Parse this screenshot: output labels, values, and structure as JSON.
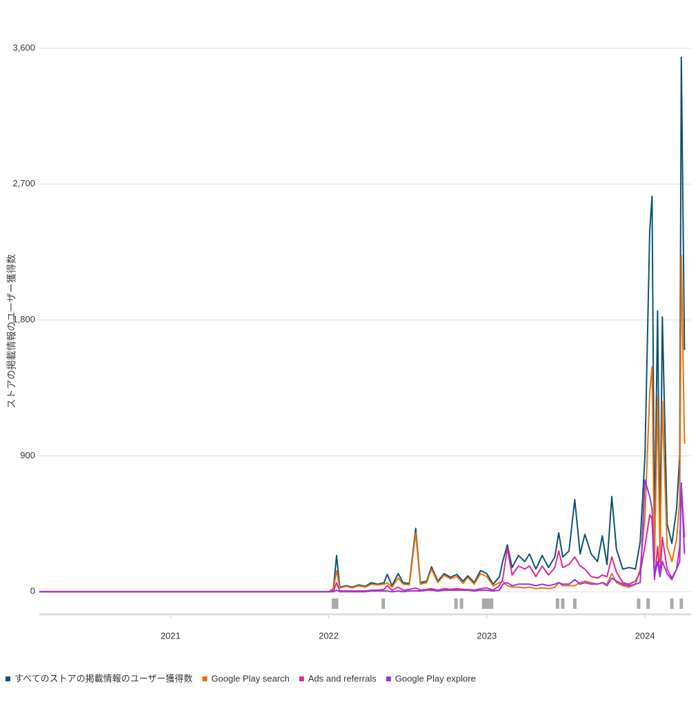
{
  "chart_data": {
    "type": "line",
    "y_label": "ストアの掲載情報のユーザー獲得数",
    "x": [
      2020.17,
      2022.0,
      2022.03,
      2022.05,
      2022.07,
      2022.11,
      2022.15,
      2022.19,
      2022.23,
      2022.27,
      2022.31,
      2022.35,
      2022.37,
      2022.4,
      2022.44,
      2022.47,
      2022.51,
      2022.55,
      2022.58,
      2022.62,
      2022.65,
      2022.69,
      2022.73,
      2022.77,
      2022.81,
      2022.85,
      2022.88,
      2022.92,
      2022.96,
      2023.0,
      2023.04,
      2023.08,
      2023.1,
      2023.13,
      2023.16,
      2023.2,
      2023.24,
      2023.27,
      2023.31,
      2023.35,
      2023.39,
      2023.43,
      2023.455,
      2023.48,
      2023.52,
      2023.556,
      2023.59,
      2023.62,
      2023.66,
      2023.7,
      2023.73,
      2023.76,
      2023.79,
      2023.82,
      2023.86,
      2023.9,
      2023.94,
      2023.97,
      2024.0,
      2024.03,
      2024.045,
      2024.06,
      2024.08,
      2024.095,
      2024.11,
      2024.14,
      2024.17,
      2024.2,
      2024.22,
      2024.23,
      2024.25
    ],
    "series": [
      {
        "name": "すべてのストアの掲載情報のユーザー獲得数",
        "color": "#0d5176",
        "values": [
          0,
          0,
          20,
          240,
          30,
          40,
          30,
          45,
          35,
          60,
          50,
          60,
          115,
          40,
          120,
          60,
          55,
          420,
          60,
          70,
          165,
          70,
          120,
          95,
          115,
          70,
          105,
          60,
          140,
          120,
          50,
          100,
          200,
          310,
          160,
          240,
          200,
          250,
          150,
          240,
          160,
          230,
          390,
          230,
          270,
          610,
          250,
          380,
          250,
          200,
          370,
          180,
          630,
          280,
          150,
          160,
          150,
          330,
          900,
          2390,
          2620,
          350,
          1860,
          300,
          1820,
          450,
          320,
          550,
          900,
          3540,
          1600
        ]
      },
      {
        "name": "Google Play search",
        "color": "#e8710a",
        "values": [
          0,
          0,
          15,
          140,
          25,
          35,
          25,
          40,
          30,
          50,
          45,
          50,
          60,
          30,
          90,
          50,
          45,
          390,
          50,
          60,
          150,
          60,
          110,
          85,
          100,
          55,
          95,
          50,
          120,
          100,
          40,
          60,
          70,
          40,
          30,
          30,
          25,
          30,
          20,
          25,
          20,
          30,
          60,
          40,
          40,
          40,
          60,
          70,
          60,
          50,
          60,
          50,
          120,
          60,
          40,
          30,
          50,
          150,
          500,
          1320,
          1490,
          200,
          1290,
          200,
          1260,
          300,
          200,
          350,
          600,
          2230,
          980
        ]
      },
      {
        "name": "Ads and referrals",
        "color": "#e52592",
        "values": [
          0,
          0,
          5,
          60,
          5,
          5,
          5,
          5,
          5,
          10,
          10,
          15,
          40,
          10,
          30,
          10,
          15,
          25,
          10,
          15,
          20,
          10,
          20,
          15,
          20,
          15,
          15,
          10,
          20,
          25,
          10,
          40,
          80,
          290,
          110,
          170,
          150,
          170,
          100,
          170,
          110,
          160,
          270,
          160,
          180,
          230,
          170,
          150,
          100,
          90,
          110,
          100,
          230,
          130,
          60,
          50,
          70,
          130,
          300,
          510,
          480,
          80,
          300,
          100,
          360,
          150,
          90,
          150,
          300,
          700,
          360
        ]
      },
      {
        "name": "Google Play explore",
        "color": "#9334e6",
        "values": [
          0,
          0,
          0,
          10,
          0,
          0,
          0,
          0,
          0,
          5,
          5,
          5,
          5,
          0,
          5,
          0,
          5,
          5,
          5,
          10,
          10,
          5,
          10,
          10,
          10,
          10,
          10,
          5,
          10,
          10,
          5,
          10,
          50,
          60,
          40,
          50,
          50,
          50,
          40,
          50,
          40,
          50,
          60,
          50,
          50,
          80,
          50,
          60,
          50,
          50,
          60,
          40,
          90,
          70,
          50,
          40,
          50,
          60,
          740,
          630,
          550,
          100,
          200,
          100,
          200,
          120,
          80,
          150,
          200,
          720,
          250
        ]
      }
    ],
    "event_x": [
      2022.03,
      2022.04,
      2022.05,
      2022.345,
      2022.805,
      2022.84,
      2022.98,
      2022.99,
      2023.0,
      2023.01,
      2023.02,
      2023.03,
      2023.447,
      2023.48,
      2023.556,
      2023.96,
      2024.02,
      2024.17,
      2024.23
    ],
    "xlim": [
      2020.17,
      2024.27
    ],
    "xticks": [
      2021,
      2022,
      2023,
      2024
    ],
    "ylim": [
      -150,
      3600
    ],
    "yticks": [
      0,
      {
        "value": 900,
        "label": "900"
      },
      {
        "value": 1800,
        "label": "1,800"
      },
      {
        "value": 2700,
        "label": "2,700"
      },
      {
        "value": 3600,
        "label": "3,600"
      }
    ],
    "grid": true,
    "legend": "bottom"
  }
}
